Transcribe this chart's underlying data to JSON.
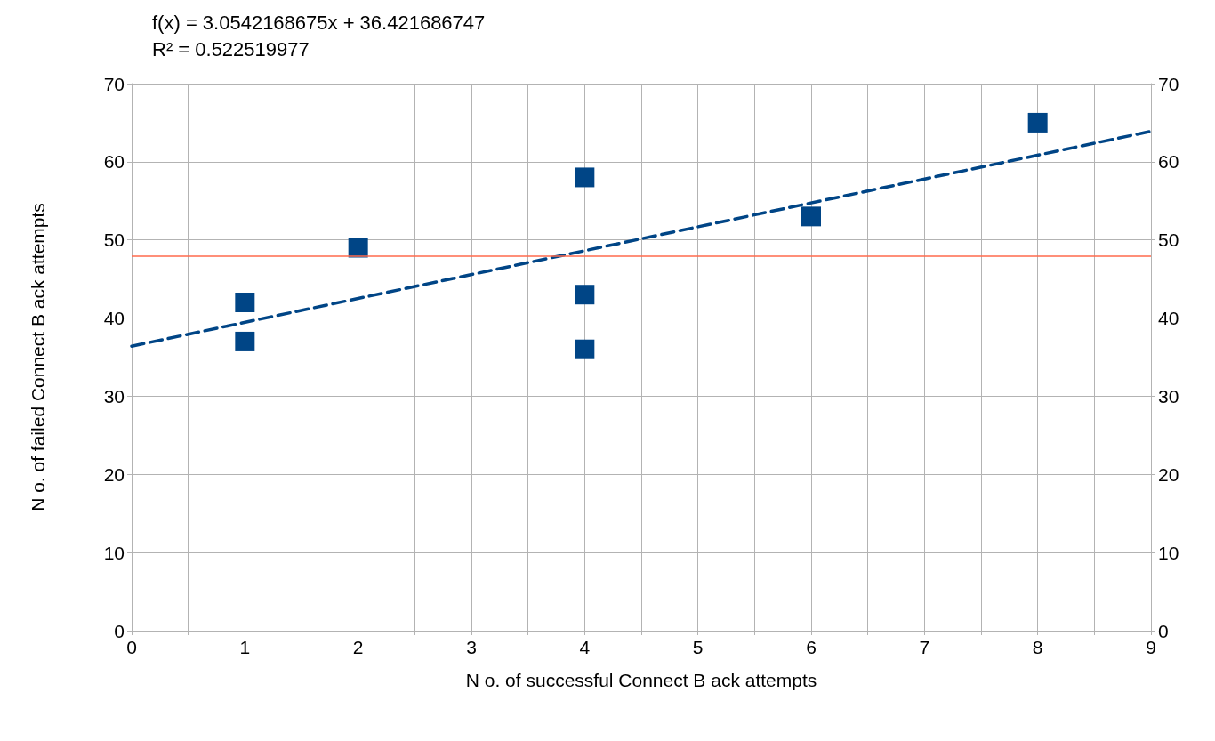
{
  "chart_data": {
    "type": "scatter",
    "xlabel": "N o. of successful Connect B ack attempts",
    "ylabel": "N o. of failed Connect B ack attempts",
    "annotations": [
      "f(x) = 3.0542168675x + 36.421686747",
      "R² = 0.522519977"
    ],
    "x": [
      1,
      1,
      2,
      4,
      4,
      4,
      6,
      8
    ],
    "series": [
      {
        "color": "#004586",
        "marker": "square",
        "values": [
          42,
          37,
          49,
          58,
          43,
          36,
          53,
          65
        ]
      },
      {
        "type": "line",
        "color": "#004586",
        "line_style": "dashed",
        "marker": "none",
        "x": [
          0,
          9
        ],
        "values": [
          36.4,
          63.9
        ]
      }
    ],
    "xlim": [
      0,
      9
    ],
    "xticks": [
      0,
      {
        "value": 0.5,
        "label": null
      },
      1,
      {
        "value": 1.5,
        "label": null
      },
      2,
      {
        "value": 2.5,
        "label": null
      },
      3,
      {
        "value": 3.5,
        "label": null
      },
      4,
      {
        "value": 4.5,
        "label": null
      },
      5,
      {
        "value": 5.5,
        "label": null
      },
      6,
      {
        "value": 6.5,
        "label": null
      },
      7,
      {
        "value": 7.5,
        "label": null
      },
      8,
      {
        "value": 8.5,
        "label": null
      },
      9
    ],
    "ylim": [
      0,
      70
    ],
    "yticks": [
      0,
      10,
      20,
      30,
      40,
      50,
      60,
      70
    ],
    "y2lim": [
      0,
      70
    ],
    "y2ticks": [
      0,
      10,
      20,
      30,
      40,
      50,
      60,
      70
    ],
    "ref_lines": [
      {
        "axis": "y",
        "value": 48,
        "color": "#ff6a4d"
      }
    ],
    "grid": true
  }
}
